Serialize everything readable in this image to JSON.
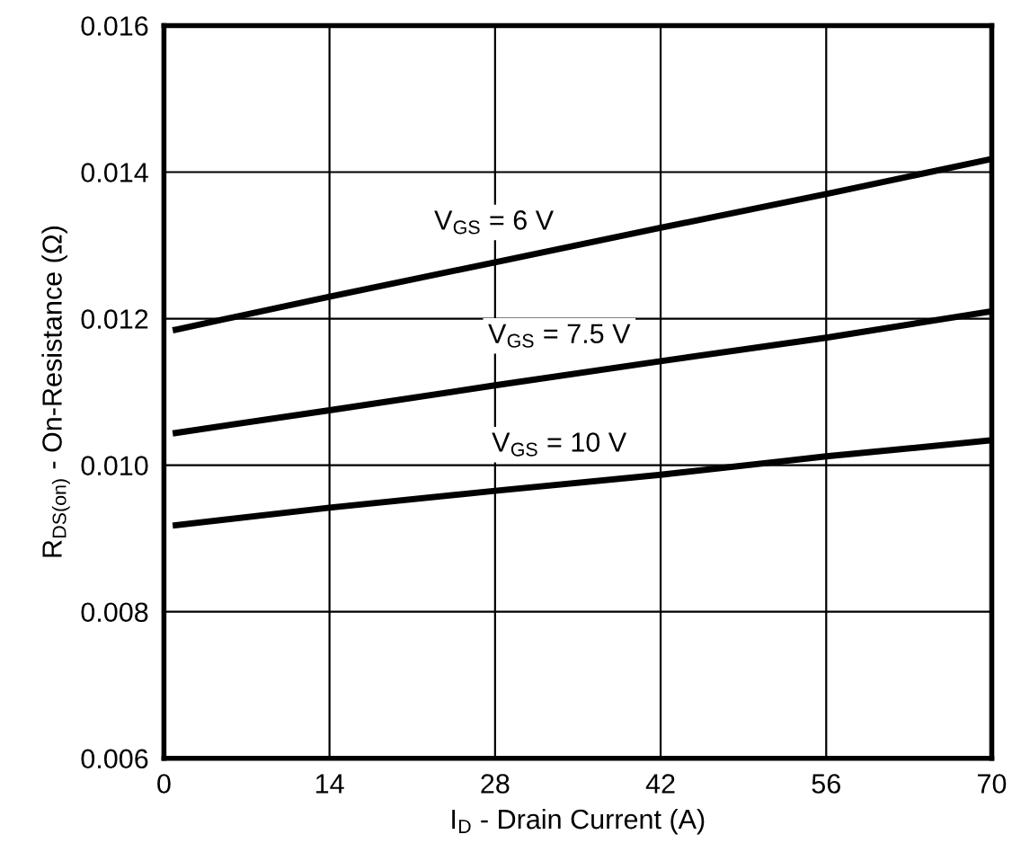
{
  "chart_data": {
    "type": "line",
    "xlabel": "I$_{D}$ - Drain Current (A)",
    "ylabel": "R$_{DS(on)}$ - On-Resistance (Ω)",
    "x": [
      1,
      14,
      28,
      42,
      56,
      70
    ],
    "series": [
      {
        "name": "V$_{GS}$ = 6 V",
        "color": "#000000",
        "values": [
          0.01185,
          0.0123,
          0.01277,
          0.01324,
          0.0137,
          0.01418
        ]
      },
      {
        "name": "V$_{GS}$ = 7.5 V",
        "color": "#000000",
        "values": [
          0.01044,
          0.01075,
          0.01109,
          0.01142,
          0.01174,
          0.0121
        ]
      },
      {
        "name": "V$_{GS}$ = 10 V",
        "color": "#000000",
        "values": [
          0.00918,
          0.00942,
          0.00965,
          0.00987,
          0.01012,
          0.01034
        ]
      }
    ],
    "xlim": [
      0,
      70
    ],
    "xticks": [
      0,
      14,
      28,
      42,
      56,
      70
    ],
    "ylim": [
      0.006,
      0.016
    ],
    "yticks": [
      0.006,
      0.008,
      {
        "value": 0.01,
        "label": "0.010"
      },
      0.012,
      0.014,
      0.016
    ],
    "grid": true,
    "marker": "none",
    "line_style": "solid",
    "legend": false
  }
}
